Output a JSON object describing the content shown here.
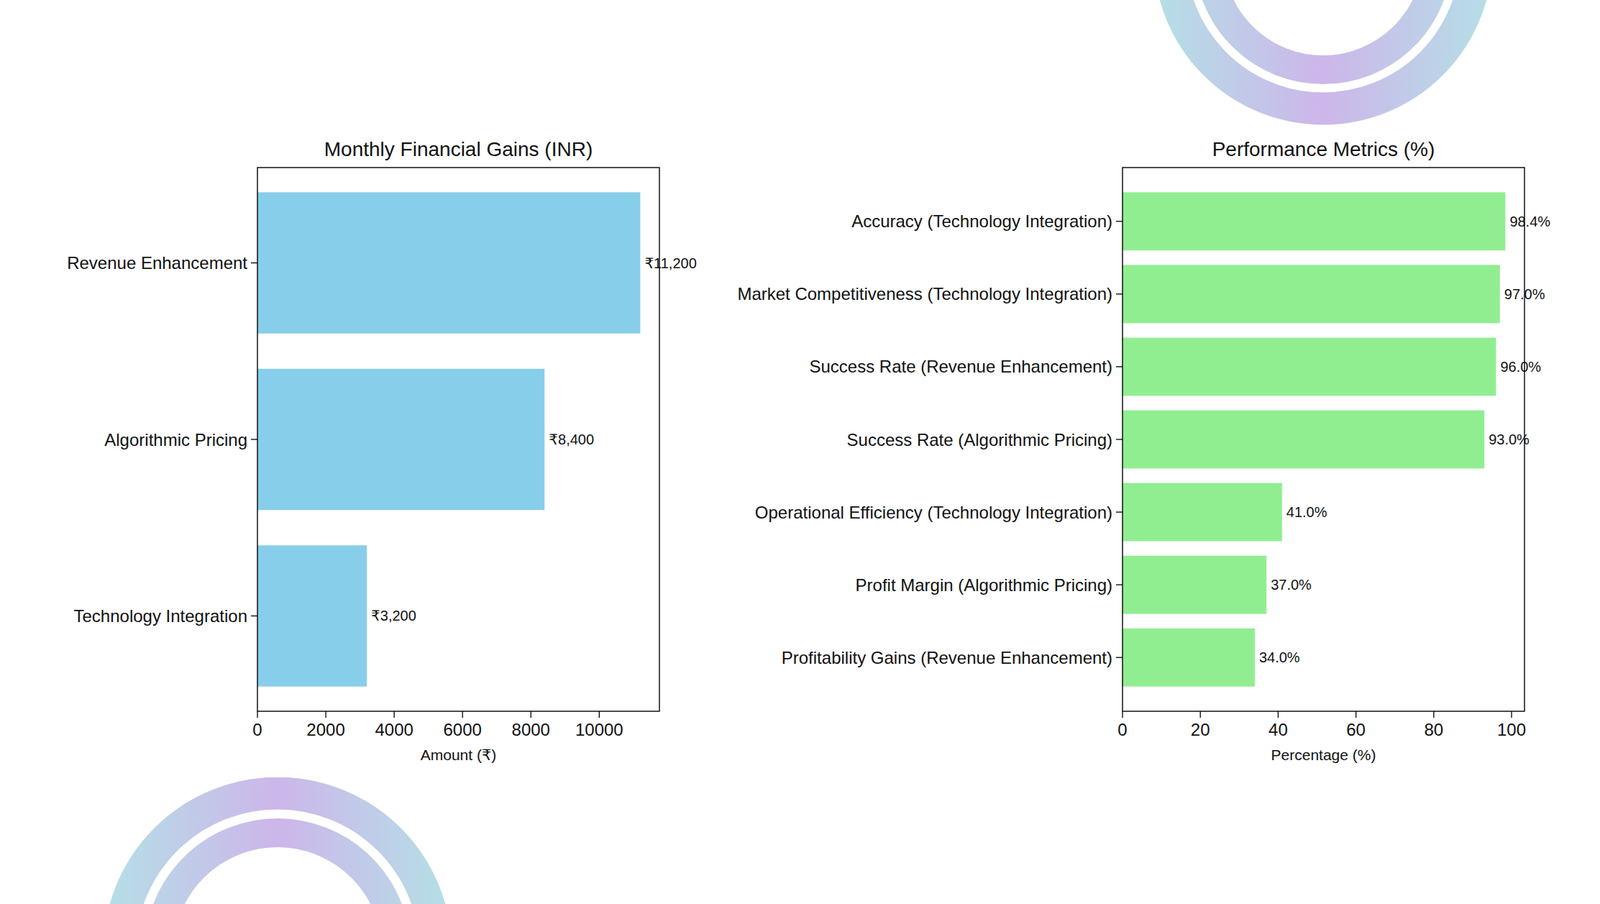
{
  "chart_data": [
    {
      "type": "bar",
      "title": "Monthly Financial Gains (INR)",
      "xlabel": "Amount (₹)",
      "orientation": "horizontal",
      "categories": [
        "Revenue Enhancement",
        "Algorithmic Pricing",
        "Technology Integration"
      ],
      "values": [
        11200,
        8400,
        3200
      ],
      "value_labels": [
        "₹11,200",
        "₹8,400",
        "₹3,200"
      ],
      "color": "#87ceeb",
      "xlim": [
        0,
        11760
      ],
      "xticks": [
        0,
        2000,
        4000,
        6000,
        8000,
        10000
      ],
      "data_labels": true,
      "grid": false
    },
    {
      "type": "bar",
      "title": "Performance Metrics (%)",
      "xlabel": "Percentage (%)",
      "orientation": "horizontal",
      "categories": [
        "Accuracy (Technology Integration)",
        "Market Competitiveness (Technology Integration)",
        "Success Rate (Revenue Enhancement)",
        "Success Rate (Algorithmic Pricing)",
        "Operational Efficiency (Technology Integration)",
        "Profit Margin (Algorithmic Pricing)",
        "Profitability Gains (Revenue Enhancement)"
      ],
      "values": [
        98.4,
        97.0,
        96.0,
        93.0,
        41.0,
        37.0,
        34.0
      ],
      "value_labels": [
        "98.4%",
        "97.0%",
        "96.0%",
        "93.0%",
        "41.0%",
        "37.0%",
        "34.0%"
      ],
      "color": "#90ee90",
      "xlim": [
        0,
        103.32
      ],
      "xticks": [
        0,
        20,
        40,
        60,
        80,
        100
      ],
      "data_labels": true,
      "grid": false
    }
  ]
}
